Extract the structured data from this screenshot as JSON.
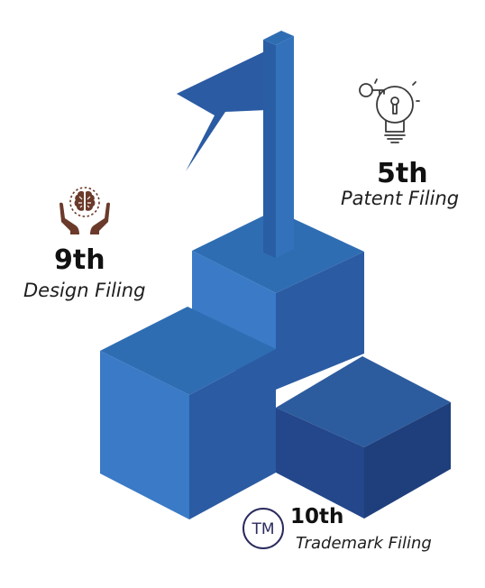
{
  "colors": {
    "top": "#2f6db3",
    "left": "#3a7ac7",
    "right": "#2b5ba3",
    "dark_top": "#2d5c9e",
    "dark_front": "#23478a",
    "dark_right": "#1f3f7c",
    "flag": "#2a4f95",
    "pole_front": "#3371bb",
    "pole_side": "#2a5ea4",
    "brown": "#6b3a2a",
    "navy": "#2a2a5e",
    "line": "#3a3a3a"
  },
  "icons": {
    "patent": "lightbulb-key-icon",
    "design": "brain-hands-icon",
    "trademark": "tm-circle-icon"
  },
  "patent": {
    "rank": "5th",
    "label": "Patent Filing"
  },
  "design": {
    "rank": "9th",
    "label": "Design Filing"
  },
  "trademark": {
    "rank": "10th",
    "label": "Trademark Filing",
    "symbol": "TM"
  }
}
